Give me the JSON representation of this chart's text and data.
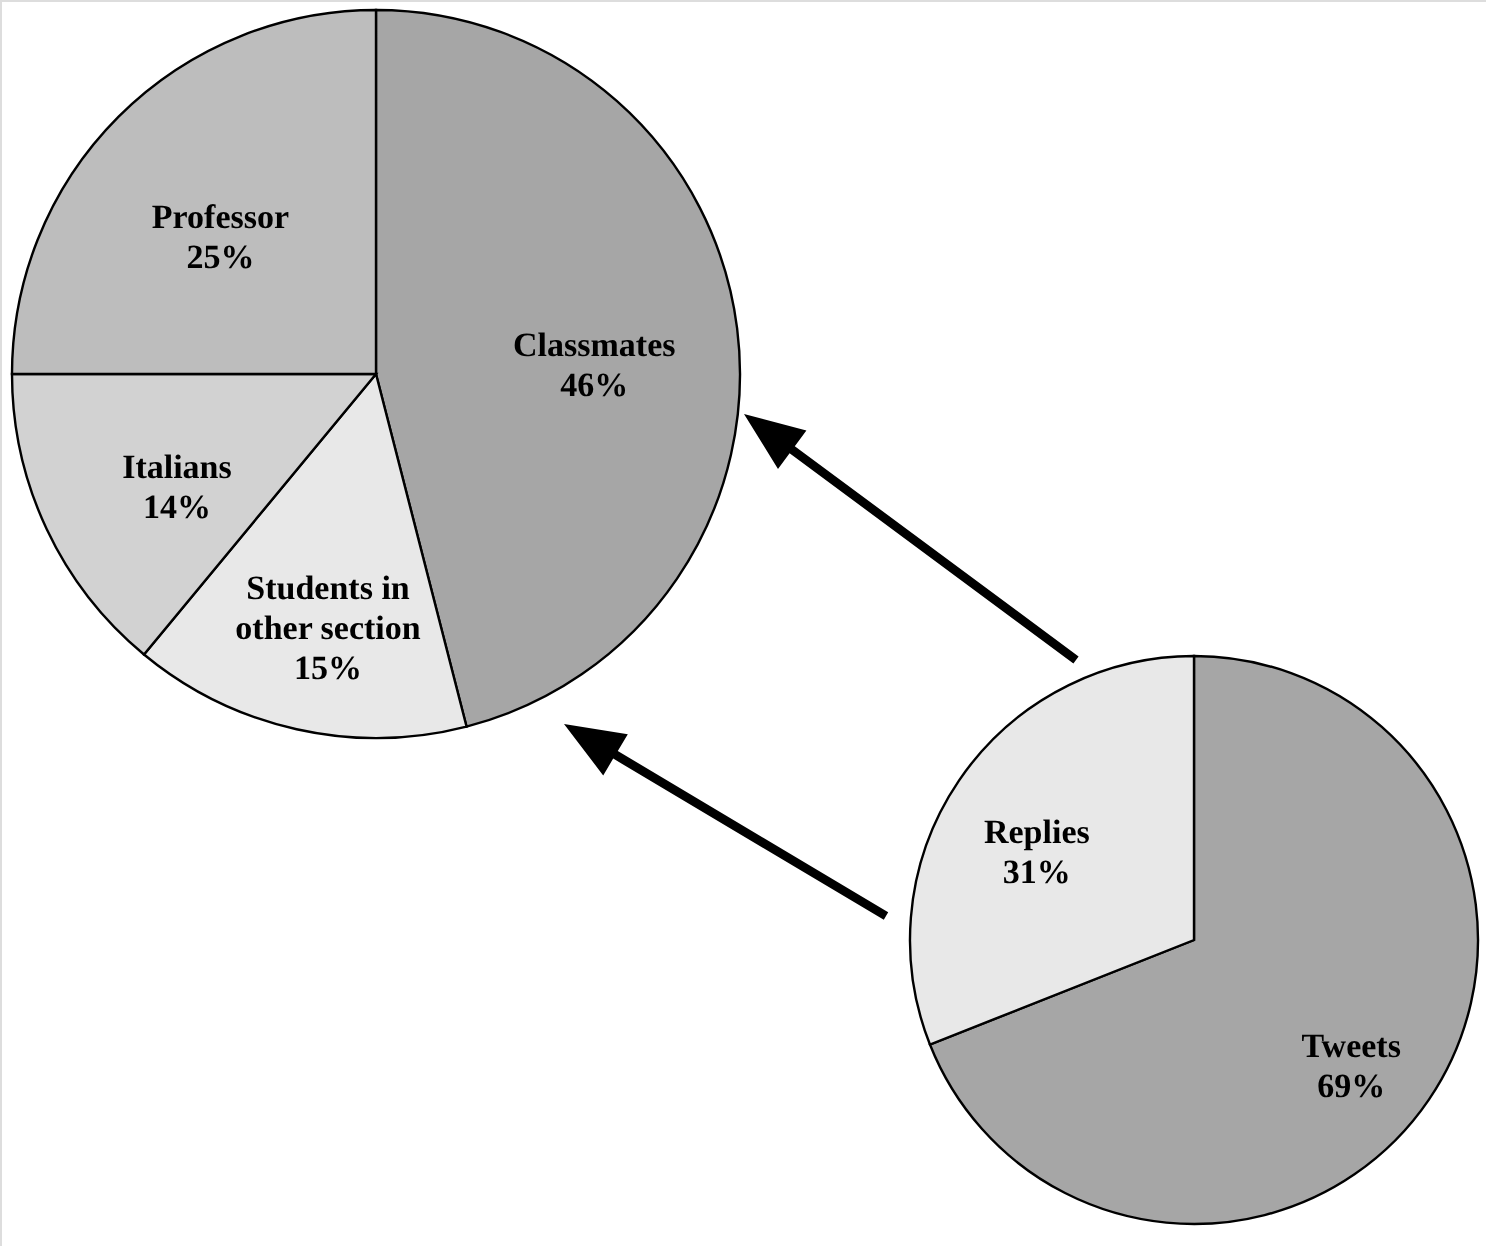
{
  "chart_data": [
    {
      "type": "pie",
      "categories": [
        "Classmates",
        "Students in other section",
        "Italians",
        "Professor"
      ],
      "values": [
        46,
        15,
        14,
        25
      ],
      "value_labels": [
        "46%",
        "15%",
        "14%",
        "25%"
      ],
      "colors": [
        "#a6a6a6",
        "#e8e8e8",
        "#d2d2d2",
        "#bdbdbd"
      ]
    },
    {
      "type": "pie",
      "categories": [
        "Tweets",
        "Replies"
      ],
      "values": [
        69,
        31
      ],
      "value_labels": [
        "69%",
        "31%"
      ],
      "colors": [
        "#a6a6a6",
        "#e8e8e8"
      ]
    }
  ]
}
